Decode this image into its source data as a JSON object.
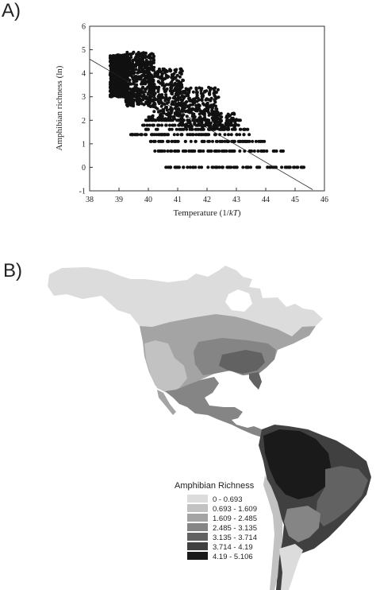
{
  "panels": {
    "a_label": "A)",
    "b_label": "B)"
  },
  "chart_data": [
    {
      "type": "scatter",
      "title": "",
      "xlabel": "Temperature (1/kT)",
      "ylabel": "Amphibian richness (ln)",
      "xlim": [
        38,
        46
      ],
      "ylim": [
        -1,
        6
      ],
      "xticks": [
        38,
        39,
        40,
        41,
        42,
        43,
        44,
        45,
        46
      ],
      "yticks": [
        -1,
        0,
        1,
        2,
        3,
        4,
        5,
        6
      ],
      "grid": false,
      "regression_line": {
        "x": [
          38.0,
          45.6
        ],
        "y": [
          4.6,
          -0.95
        ]
      },
      "clusters": [
        {
          "x_range": [
            38.7,
            39.3
          ],
          "y_range": [
            3.0,
            4.8
          ],
          "approx_points": 700
        },
        {
          "x_range": [
            39.2,
            40.2
          ],
          "y_range": [
            2.6,
            4.9
          ],
          "approx_points": 450
        },
        {
          "x_range": [
            40.0,
            41.2
          ],
          "y_range": [
            2.0,
            4.2
          ],
          "approx_points": 320
        },
        {
          "x_range": [
            41.0,
            42.4
          ],
          "y_range": [
            1.7,
            3.4
          ],
          "approx_points": 260
        },
        {
          "x_range": [
            42.2,
            43.0
          ],
          "y_range": [
            1.6,
            2.3
          ],
          "approx_points": 60
        }
      ],
      "level_rows": [
        {
          "y": 2.0,
          "x_range": [
            39.8,
            43.2
          ]
        },
        {
          "y": 1.79,
          "x_range": [
            39.8,
            43.1
          ]
        },
        {
          "y": 1.61,
          "x_range": [
            39.9,
            43.5
          ]
        },
        {
          "y": 1.39,
          "x_range": [
            39.4,
            43.6
          ]
        },
        {
          "y": 1.1,
          "x_range": [
            40.0,
            44.0
          ]
        },
        {
          "y": 0.69,
          "x_range": [
            40.2,
            44.6
          ]
        },
        {
          "y": 0.0,
          "x_range": [
            40.6,
            45.3
          ]
        }
      ]
    },
    {
      "type": "heatmap",
      "title": "",
      "legend_title": "Amphibian Richness",
      "legend": [
        {
          "label": "0 - 0.693",
          "color": "#dcdcdc"
        },
        {
          "label": "0.693 - 1.609",
          "color": "#c2c2c2"
        },
        {
          "label": "1.609 - 2.485",
          "color": "#a4a4a4"
        },
        {
          "label": "2.485 - 3.135",
          "color": "#858585"
        },
        {
          "label": "3.135 - 3.714",
          "color": "#626262"
        },
        {
          "label": "3.714 - 4.19",
          "color": "#404040"
        },
        {
          "label": "4.19 - 5.106",
          "color": "#1a1a1a"
        }
      ]
    }
  ]
}
